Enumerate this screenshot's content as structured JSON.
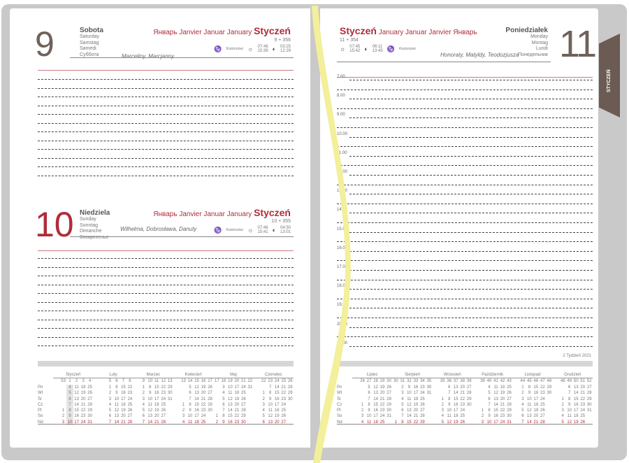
{
  "colors": {
    "accent": "#b02c3a",
    "tab": "#6b5b53",
    "ribbon": "#f3ef9a"
  },
  "day9": {
    "number": "9",
    "weekday": "Sobota",
    "translations": [
      "Saturday",
      "Samstag",
      "Samedi",
      "Суббота"
    ],
    "month": "Январь Janvier Januar January",
    "month_pl": "Styczeń",
    "count": "9 + 356",
    "names": "Marceliny, Marcjanny",
    "city": "Koziorożec",
    "sunrise": "07:46",
    "sunset": "15:39",
    "moonrise": "03:25",
    "moonset": "12:29"
  },
  "day10": {
    "number": "10",
    "weekday": "Niedziela",
    "translations": [
      "Sunday",
      "Sonntag",
      "Dimanche",
      "Воскресенье"
    ],
    "month": "Январь Janvier Januar January",
    "month_pl": "Styczeń",
    "count": "10 + 355",
    "names": "Wilhelma, Dobrosława, Danuty",
    "city": "Koziorożec",
    "sunrise": "07:46",
    "sunset": "15:41",
    "moonrise": "04:50",
    "moonset": "13:01"
  },
  "day11": {
    "number": "11",
    "weekday": "Poniedziałek",
    "translations": [
      "Monday",
      "Montag",
      "Lundi",
      "Понедельник"
    ],
    "month": "January Januar Janvier Январь",
    "month_pl": "Styczeń",
    "count": "11 + 354",
    "names": "Honoraty, Matyldy, Teodozjusza",
    "city": "Koziorożec",
    "sunrise": "07:45",
    "sunset": "15:42",
    "moonrise": "06:11",
    "moonset": "13:45"
  },
  "hours": [
    "7.00",
    "8.00",
    "9.00",
    "10.00",
    "11.00",
    "12.00",
    "13.00",
    "14.00",
    "15.00",
    "16.00",
    "17.00",
    "18.00",
    "19.00",
    "20.00",
    "21.00"
  ],
  "week_label": "2 Tydzień 2021",
  "tab_label": "STYCZEŃ",
  "weekdays": [
    "Pn",
    "Wt",
    "Śr",
    "Cz",
    "Pt",
    "So",
    "Nd"
  ],
  "months": [
    {
      "name": "Styczeń",
      "weeks": [
        "53",
        "1",
        "2",
        "3",
        "4"
      ],
      "cols": [
        [
          "",
          "",
          "",
          "",
          "1",
          "2",
          "3"
        ],
        [
          "4",
          "5",
          "6",
          "7",
          "8",
          "9",
          "10"
        ],
        [
          "11",
          "12",
          "13",
          "14",
          "15",
          "16",
          "17"
        ],
        [
          "18",
          "19",
          "20",
          "21",
          "22",
          "23",
          "24"
        ],
        [
          "25",
          "26",
          "27",
          "28",
          "29",
          "30",
          "31"
        ]
      ]
    },
    {
      "name": "Luty",
      "weeks": [
        "5",
        "6",
        "7",
        "8"
      ],
      "cols": [
        [
          "1",
          "2",
          "3",
          "4",
          "5",
          "6",
          "7"
        ],
        [
          "8",
          "9",
          "10",
          "11",
          "12",
          "13",
          "14"
        ],
        [
          "15",
          "16",
          "17",
          "18",
          "19",
          "20",
          "21"
        ],
        [
          "22",
          "23",
          "24",
          "25",
          "26",
          "27",
          "28"
        ]
      ]
    },
    {
      "name": "Marzec",
      "weeks": [
        "9",
        "10",
        "11",
        "12",
        "13"
      ],
      "cols": [
        [
          "1",
          "2",
          "3",
          "4",
          "5",
          "6",
          "7"
        ],
        [
          "8",
          "9",
          "10",
          "11",
          "12",
          "13",
          "14"
        ],
        [
          "15",
          "16",
          "17",
          "18",
          "19",
          "20",
          "21"
        ],
        [
          "22",
          "23",
          "24",
          "25",
          "26",
          "27",
          "28"
        ],
        [
          "29",
          "30",
          "31",
          "",
          "",
          "",
          ""
        ]
      ]
    },
    {
      "name": "Kwiecień",
      "weeks": [
        "13",
        "14",
        "15",
        "16",
        "17"
      ],
      "cols": [
        [
          "",
          "",
          "",
          "1",
          "2",
          "3",
          "4"
        ],
        [
          "5",
          "6",
          "7",
          "8",
          "9",
          "10",
          "11"
        ],
        [
          "12",
          "13",
          "14",
          "15",
          "16",
          "17",
          "18"
        ],
        [
          "19",
          "20",
          "21",
          "22",
          "23",
          "24",
          "25"
        ],
        [
          "26",
          "27",
          "28",
          "29",
          "30",
          "",
          ""
        ]
      ]
    },
    {
      "name": "Maj",
      "weeks": [
        "17",
        "18",
        "19",
        "20",
        "21",
        "22"
      ],
      "cols": [
        [
          "",
          "",
          "",
          "",
          "",
          "1",
          "2"
        ],
        [
          "3",
          "4",
          "5",
          "6",
          "7",
          "8",
          "9"
        ],
        [
          "10",
          "11",
          "12",
          "13",
          "14",
          "15",
          "16"
        ],
        [
          "17",
          "18",
          "19",
          "20",
          "21",
          "22",
          "23"
        ],
        [
          "24",
          "25",
          "26",
          "27",
          "28",
          "29",
          "30"
        ],
        [
          "31",
          "",
          "",
          "",
          "",
          "",
          ""
        ]
      ]
    },
    {
      "name": "Czerwiec",
      "weeks": [
        "22",
        "23",
        "24",
        "25",
        "26"
      ],
      "cols": [
        [
          "",
          "1",
          "2",
          "3",
          "4",
          "5",
          "6"
        ],
        [
          "7",
          "8",
          "9",
          "10",
          "11",
          "12",
          "13"
        ],
        [
          "14",
          "15",
          "16",
          "17",
          "18",
          "19",
          "20"
        ],
        [
          "21",
          "22",
          "23",
          "24",
          "25",
          "26",
          "27"
        ],
        [
          "28",
          "29",
          "30",
          "",
          "",
          "",
          ""
        ]
      ]
    },
    {
      "name": "Lipiec",
      "weeks": [
        "26",
        "27",
        "28",
        "29",
        "30"
      ],
      "cols": [
        [
          "",
          "",
          "",
          "1",
          "2",
          "3",
          "4"
        ],
        [
          "5",
          "6",
          "7",
          "8",
          "9",
          "10",
          "11"
        ],
        [
          "12",
          "13",
          "14",
          "15",
          "16",
          "17",
          "18"
        ],
        [
          "19",
          "20",
          "21",
          "22",
          "23",
          "24",
          "25"
        ],
        [
          "26",
          "27",
          "28",
          "29",
          "30",
          "31",
          ""
        ]
      ]
    },
    {
      "name": "Sierpień",
      "weeks": [
        "30",
        "31",
        "32",
        "33",
        "34",
        "35"
      ],
      "cols": [
        [
          "",
          "",
          "",
          "",
          "",
          "",
          "1"
        ],
        [
          "2",
          "3",
          "4",
          "5",
          "6",
          "7",
          "8"
        ],
        [
          "9",
          "10",
          "11",
          "12",
          "13",
          "14",
          "15"
        ],
        [
          "16",
          "17",
          "18",
          "19",
          "20",
          "21",
          "22"
        ],
        [
          "23",
          "24",
          "25",
          "26",
          "27",
          "28",
          "29"
        ],
        [
          "30",
          "31",
          "",
          "",
          "",
          "",
          ""
        ]
      ]
    },
    {
      "name": "Wrzesień",
      "weeks": [
        "35",
        "36",
        "37",
        "38",
        "39"
      ],
      "cols": [
        [
          "",
          "",
          "1",
          "2",
          "3",
          "4",
          "5"
        ],
        [
          "6",
          "7",
          "8",
          "9",
          "10",
          "11",
          "12"
        ],
        [
          "13",
          "14",
          "15",
          "16",
          "17",
          "18",
          "19"
        ],
        [
          "20",
          "21",
          "22",
          "23",
          "24",
          "25",
          "26"
        ],
        [
          "27",
          "28",
          "29",
          "30",
          "",
          "",
          ""
        ]
      ]
    },
    {
      "name": "Październik",
      "weeks": [
        "39",
        "40",
        "41",
        "42",
        "43"
      ],
      "cols": [
        [
          "",
          "",
          "",
          "",
          "1",
          "2",
          "3"
        ],
        [
          "4",
          "5",
          "6",
          "7",
          "8",
          "9",
          "10"
        ],
        [
          "11",
          "12",
          "13",
          "14",
          "15",
          "16",
          "17"
        ],
        [
          "18",
          "19",
          "20",
          "21",
          "22",
          "23",
          "24"
        ],
        [
          "25",
          "26",
          "27",
          "28",
          "29",
          "30",
          "31"
        ]
      ]
    },
    {
      "name": "Listopad",
      "weeks": [
        "44",
        "45",
        "46",
        "47",
        "48"
      ],
      "cols": [
        [
          "1",
          "2",
          "3",
          "4",
          "5",
          "6",
          "7"
        ],
        [
          "8",
          "9",
          "10",
          "11",
          "12",
          "13",
          "14"
        ],
        [
          "15",
          "16",
          "17",
          "18",
          "19",
          "20",
          "21"
        ],
        [
          "22",
          "23",
          "24",
          "25",
          "26",
          "27",
          "28"
        ],
        [
          "29",
          "30",
          "",
          "",
          "",
          "",
          ""
        ]
      ]
    },
    {
      "name": "Grudzień",
      "weeks": [
        "48",
        "49",
        "50",
        "51",
        "52"
      ],
      "cols": [
        [
          "",
          "",
          "1",
          "2",
          "3",
          "4",
          "5"
        ],
        [
          "6",
          "7",
          "8",
          "9",
          "10",
          "11",
          "12"
        ],
        [
          "13",
          "14",
          "15",
          "16",
          "17",
          "18",
          "19"
        ],
        [
          "20",
          "21",
          "22",
          "23",
          "24",
          "25",
          "26"
        ],
        [
          "27",
          "28",
          "29",
          "30",
          "31",
          "",
          ""
        ]
      ]
    }
  ]
}
